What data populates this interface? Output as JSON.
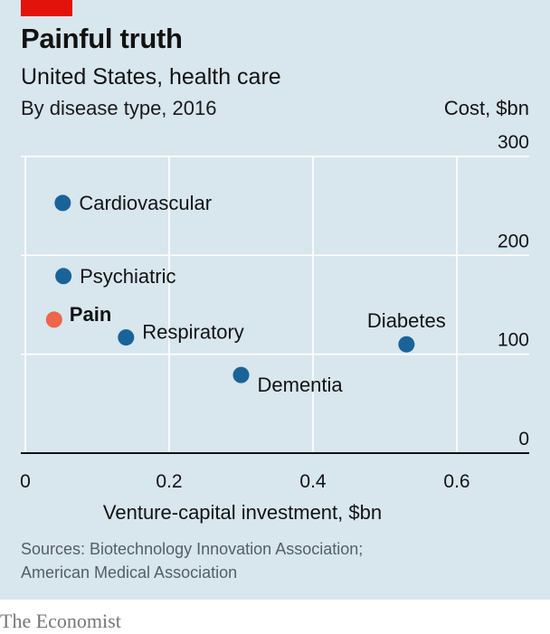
{
  "header": {
    "title": "Painful truth",
    "subtitle": "United States, health care",
    "subtitle2": "By disease type, 2016",
    "y_unit": "Cost, $bn"
  },
  "footer": {
    "source_line1": "Sources: Biotechnology Innovation Association;",
    "source_line2": "American Medical Association",
    "brand": "The Economist"
  },
  "colors": {
    "panel_bg": "#d8e6ee",
    "accent_red": "#e3120b",
    "point_blue": "#1a6399",
    "point_highlight": "#f06449",
    "grid": "#ffffff",
    "axis": "#121212"
  },
  "chart_data": {
    "type": "scatter",
    "xlabel": "Venture-capital investment, $bn",
    "ylabel": "Cost, $bn",
    "xlim": [
      0,
      0.7
    ],
    "ylim": [
      0,
      300
    ],
    "x_ticks": [
      0,
      0.2,
      0.4,
      0.6
    ],
    "x_tick_labels": [
      "0",
      "0.2",
      "0.4",
      "0.6"
    ],
    "y_ticks": [
      0,
      100,
      200,
      300
    ],
    "y_tick_labels": [
      "0",
      "100",
      "200",
      "300"
    ],
    "grid": true,
    "points": [
      {
        "label": "Cardiovascular",
        "x": 0.052,
        "y": 253,
        "highlight": false
      },
      {
        "label": "Psychiatric",
        "x": 0.053,
        "y": 179,
        "highlight": false
      },
      {
        "label": "Pain",
        "x": 0.04,
        "y": 135,
        "highlight": true
      },
      {
        "label": "Respiratory",
        "x": 0.14,
        "y": 117,
        "highlight": false
      },
      {
        "label": "Diabetes",
        "x": 0.53,
        "y": 110,
        "highlight": false
      },
      {
        "label": "Dementia",
        "x": 0.3,
        "y": 79,
        "highlight": false
      }
    ]
  }
}
